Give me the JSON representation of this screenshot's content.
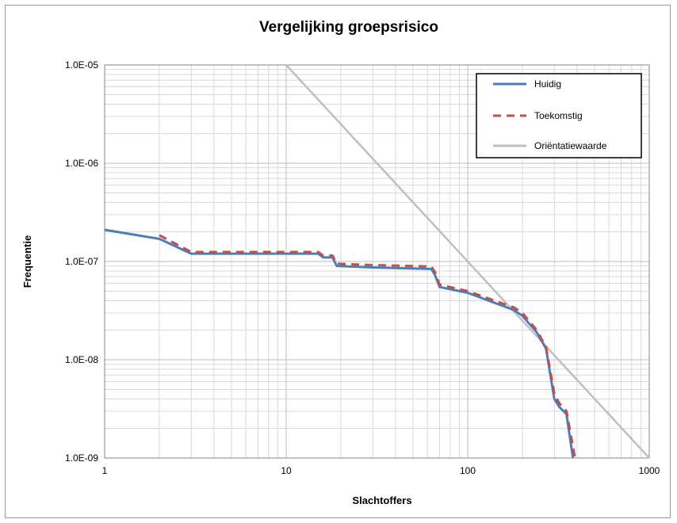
{
  "chart_data": {
    "type": "line",
    "title": "Vergelijking groepsrisico",
    "xlabel": "Slachtoffers",
    "ylabel": "Frequentie",
    "x_scale": "log",
    "y_scale": "log",
    "xlim": [
      1,
      1000
    ],
    "ylim": [
      1e-09,
      1e-05
    ],
    "x_ticks": [
      "1",
      "10",
      "100",
      "1000"
    ],
    "y_ticks": [
      "1.0E-09",
      "1.0E-08",
      "1.0E-07",
      "1.0E-06",
      "1.0E-05"
    ],
    "grid": true,
    "legend_position": "top-right",
    "series": [
      {
        "name": "Huidig",
        "color": "#4a7ebb",
        "style": "solid",
        "points": [
          [
            1,
            2.1e-07
          ],
          [
            2,
            1.7e-07
          ],
          [
            3,
            1.2e-07
          ],
          [
            15,
            1.2e-07
          ],
          [
            16,
            1.1e-07
          ],
          [
            18,
            1.1e-07
          ],
          [
            19,
            9e-08
          ],
          [
            30,
            8.7e-08
          ],
          [
            63,
            8.4e-08
          ],
          [
            66,
            7.3e-08
          ],
          [
            70,
            5.5e-08
          ],
          [
            100,
            4.8e-08
          ],
          [
            180,
            3.2e-08
          ],
          [
            200,
            2.8e-08
          ],
          [
            240,
            1.9e-08
          ],
          [
            270,
            1.3e-08
          ],
          [
            300,
            4e-09
          ],
          [
            320,
            3.3e-09
          ],
          [
            350,
            2.8e-09
          ],
          [
            380,
            1e-09
          ]
        ]
      },
      {
        "name": "Toekomstig",
        "color": "#c0504d",
        "style": "dashed",
        "points": [
          [
            2,
            1.85e-07
          ],
          [
            3,
            1.25e-07
          ],
          [
            15,
            1.25e-07
          ],
          [
            16,
            1.15e-07
          ],
          [
            18,
            1.15e-07
          ],
          [
            19,
            9.5e-08
          ],
          [
            30,
            9.2e-08
          ],
          [
            63,
            8.9e-08
          ],
          [
            66,
            7.8e-08
          ],
          [
            70,
            5.8e-08
          ],
          [
            100,
            5e-08
          ],
          [
            180,
            3.4e-08
          ],
          [
            200,
            3e-08
          ],
          [
            240,
            2e-08
          ],
          [
            270,
            1.35e-08
          ],
          [
            300,
            4.5e-09
          ],
          [
            320,
            3.6e-09
          ],
          [
            350,
            3e-09
          ],
          [
            390,
            1e-09
          ]
        ]
      },
      {
        "name": "Oriëntatiewaarde",
        "color": "#bfbfbf",
        "style": "solid",
        "points": [
          [
            10,
            1e-05
          ],
          [
            1000,
            1e-09
          ]
        ]
      }
    ]
  }
}
